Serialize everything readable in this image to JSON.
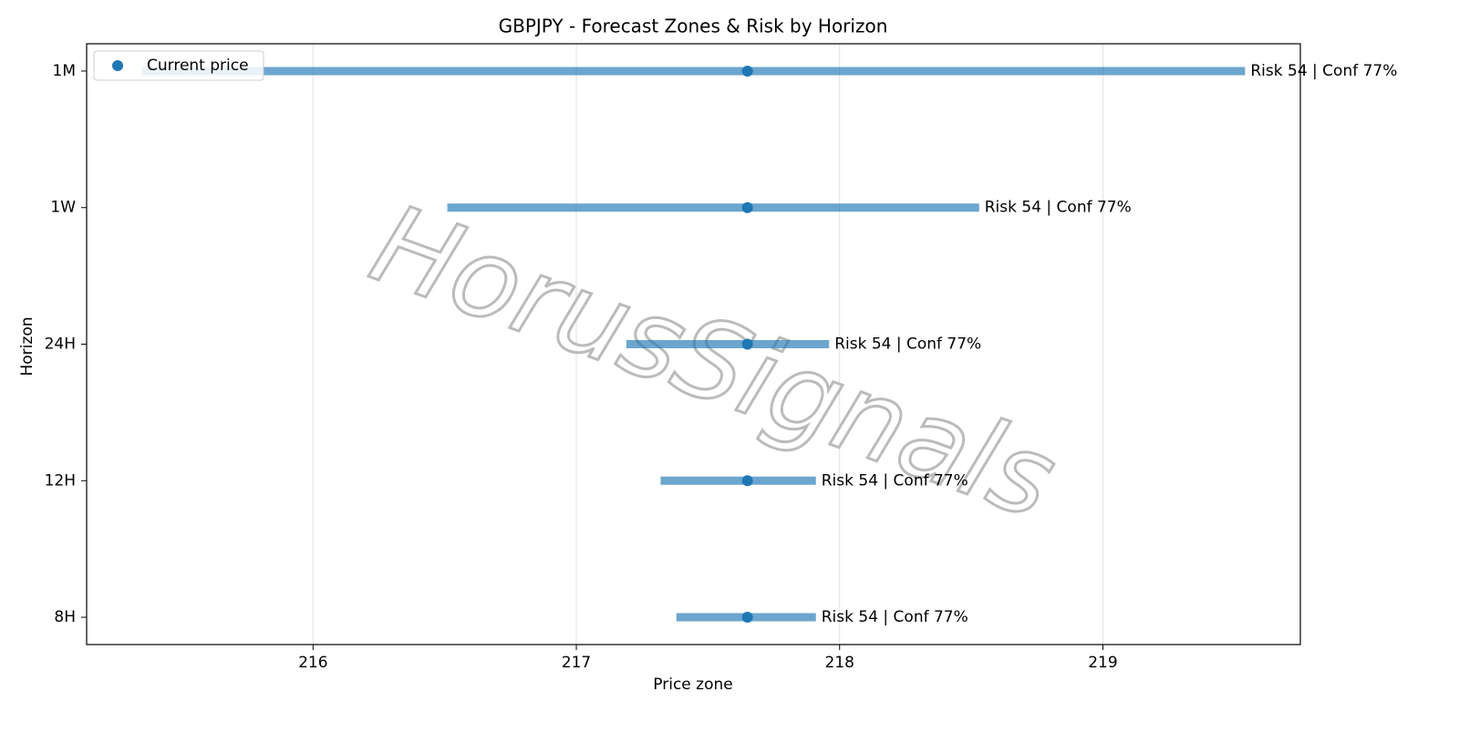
{
  "chart_data": {
    "type": "range",
    "title": "GBPJPY - Forecast Zones & Risk by Horizon",
    "xlabel": "Price zone",
    "ylabel": "Horizon",
    "categories": [
      "1M",
      "1W",
      "24H",
      "12H",
      "8H"
    ],
    "ranges": {
      "low": [
        215.35,
        216.51,
        217.19,
        217.32,
        217.38
      ],
      "high": [
        219.54,
        218.53,
        217.96,
        217.91,
        217.91
      ],
      "color": "#1f77b4"
    },
    "series": [
      {
        "name": "Current price",
        "color": "#1f77b4",
        "values": [
          217.65,
          217.65,
          217.65,
          217.65,
          217.65
        ]
      }
    ],
    "annotations": [
      "Risk 54 | Conf 77%",
      "Risk 54 | Conf 77%",
      "Risk 54 | Conf 77%",
      "Risk 54 | Conf 77%",
      "Risk 54 | Conf 77%"
    ],
    "xlim": [
      215.14,
      219.75
    ],
    "xticks": [
      216,
      217,
      218,
      219
    ],
    "grid": true,
    "legend": "upper left",
    "watermark": "HorusSignals"
  }
}
